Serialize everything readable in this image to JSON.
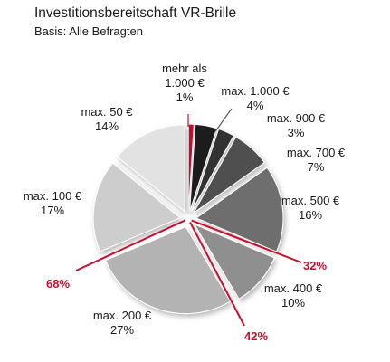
{
  "chart_data": {
    "type": "pie",
    "title": "Investitionsbereitschaft VR-Brille",
    "subtitle": "Basis: Alle Befragten",
    "slices": [
      {
        "label": "mehr als 1.000 €",
        "value": 1,
        "display": "1%",
        "color": "#c8102e"
      },
      {
        "label": "max. 1.000 €",
        "value": 4,
        "display": "4%",
        "color": "#1c1c1c"
      },
      {
        "label": "max. 900 €",
        "value": 3,
        "display": "3%",
        "color": "#333333"
      },
      {
        "label": "max. 700 €",
        "value": 7,
        "display": "7%",
        "color": "#4f4f4f"
      },
      {
        "label": "max. 500 €",
        "value": 16,
        "display": "16%",
        "color": "#6e6e6e"
      },
      {
        "label": "max. 400 €",
        "value": 10,
        "display": "10%",
        "color": "#8f8f8f"
      },
      {
        "label": "max. 200 €",
        "value": 27,
        "display": "27%",
        "color": "#b3b3b3"
      },
      {
        "label": "max. 100 €",
        "value": 17,
        "display": "17%",
        "color": "#cdcdcd"
      },
      {
        "label": "max. 50 €",
        "value": 14,
        "display": "14%",
        "color": "#e2e2e2"
      }
    ],
    "cumulative": [
      {
        "label": "32%",
        "after_slice": 4
      },
      {
        "label": "42%",
        "after_slice": 5
      },
      {
        "label": "68%",
        "after_slice": 6
      }
    ],
    "accent_color": "#c8102e"
  }
}
